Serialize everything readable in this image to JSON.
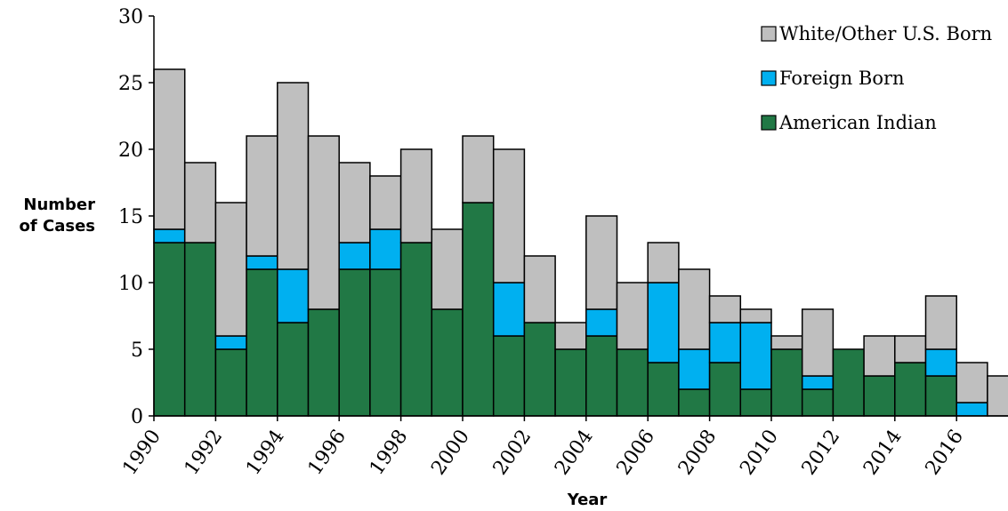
{
  "chart_data": {
    "type": "bar",
    "stacked": true,
    "title": "",
    "xlabel": "Year",
    "ylabel": [
      "Number",
      "of Cases"
    ],
    "ylim": [
      0,
      30
    ],
    "yticks": [
      "0",
      "5",
      "10",
      "15",
      "20",
      "25",
      "30"
    ],
    "xtick_labels": [
      "1990",
      "1992",
      "1994",
      "1996",
      "1998",
      "2000",
      "2002",
      "2004",
      "2006",
      "2008",
      "2010",
      "2012",
      "2014",
      "2016"
    ],
    "categories": [
      "1990",
      "1991",
      "1992",
      "1993",
      "1994",
      "1995",
      "1996",
      "1997",
      "1998",
      "1999",
      "2000",
      "2001",
      "2002",
      "2003",
      "2004",
      "2005",
      "2006",
      "2007",
      "2008",
      "2009",
      "2010",
      "2011",
      "2012",
      "2013",
      "2014",
      "2015",
      "2016",
      "2017"
    ],
    "series": [
      {
        "name": "American Indian",
        "color": "#217845",
        "values": [
          13,
          13,
          5,
          11,
          7,
          8,
          11,
          11,
          13,
          8,
          16,
          6,
          7,
          5,
          6,
          5,
          4,
          2,
          4,
          2,
          5,
          2,
          5,
          3,
          4,
          3,
          0,
          0
        ]
      },
      {
        "name": "Foreign Born",
        "color": "#00b0f0",
        "values": [
          1,
          0,
          1,
          1,
          4,
          0,
          2,
          3,
          0,
          0,
          0,
          4,
          0,
          0,
          2,
          0,
          6,
          3,
          3,
          5,
          0,
          1,
          0,
          0,
          0,
          2,
          1,
          0
        ]
      },
      {
        "name": "White/Other U.S. Born",
        "color": "#bfbfbf",
        "values": [
          12,
          6,
          10,
          9,
          14,
          13,
          6,
          4,
          7,
          6,
          5,
          10,
          5,
          2,
          7,
          5,
          3,
          6,
          2,
          1,
          1,
          5,
          0,
          3,
          2,
          4,
          3,
          3
        ]
      }
    ],
    "legend": {
      "position": "top-right",
      "order": [
        "White/Other U.S. Born",
        "Foreign Born",
        "American Indian"
      ]
    },
    "grid": false
  }
}
